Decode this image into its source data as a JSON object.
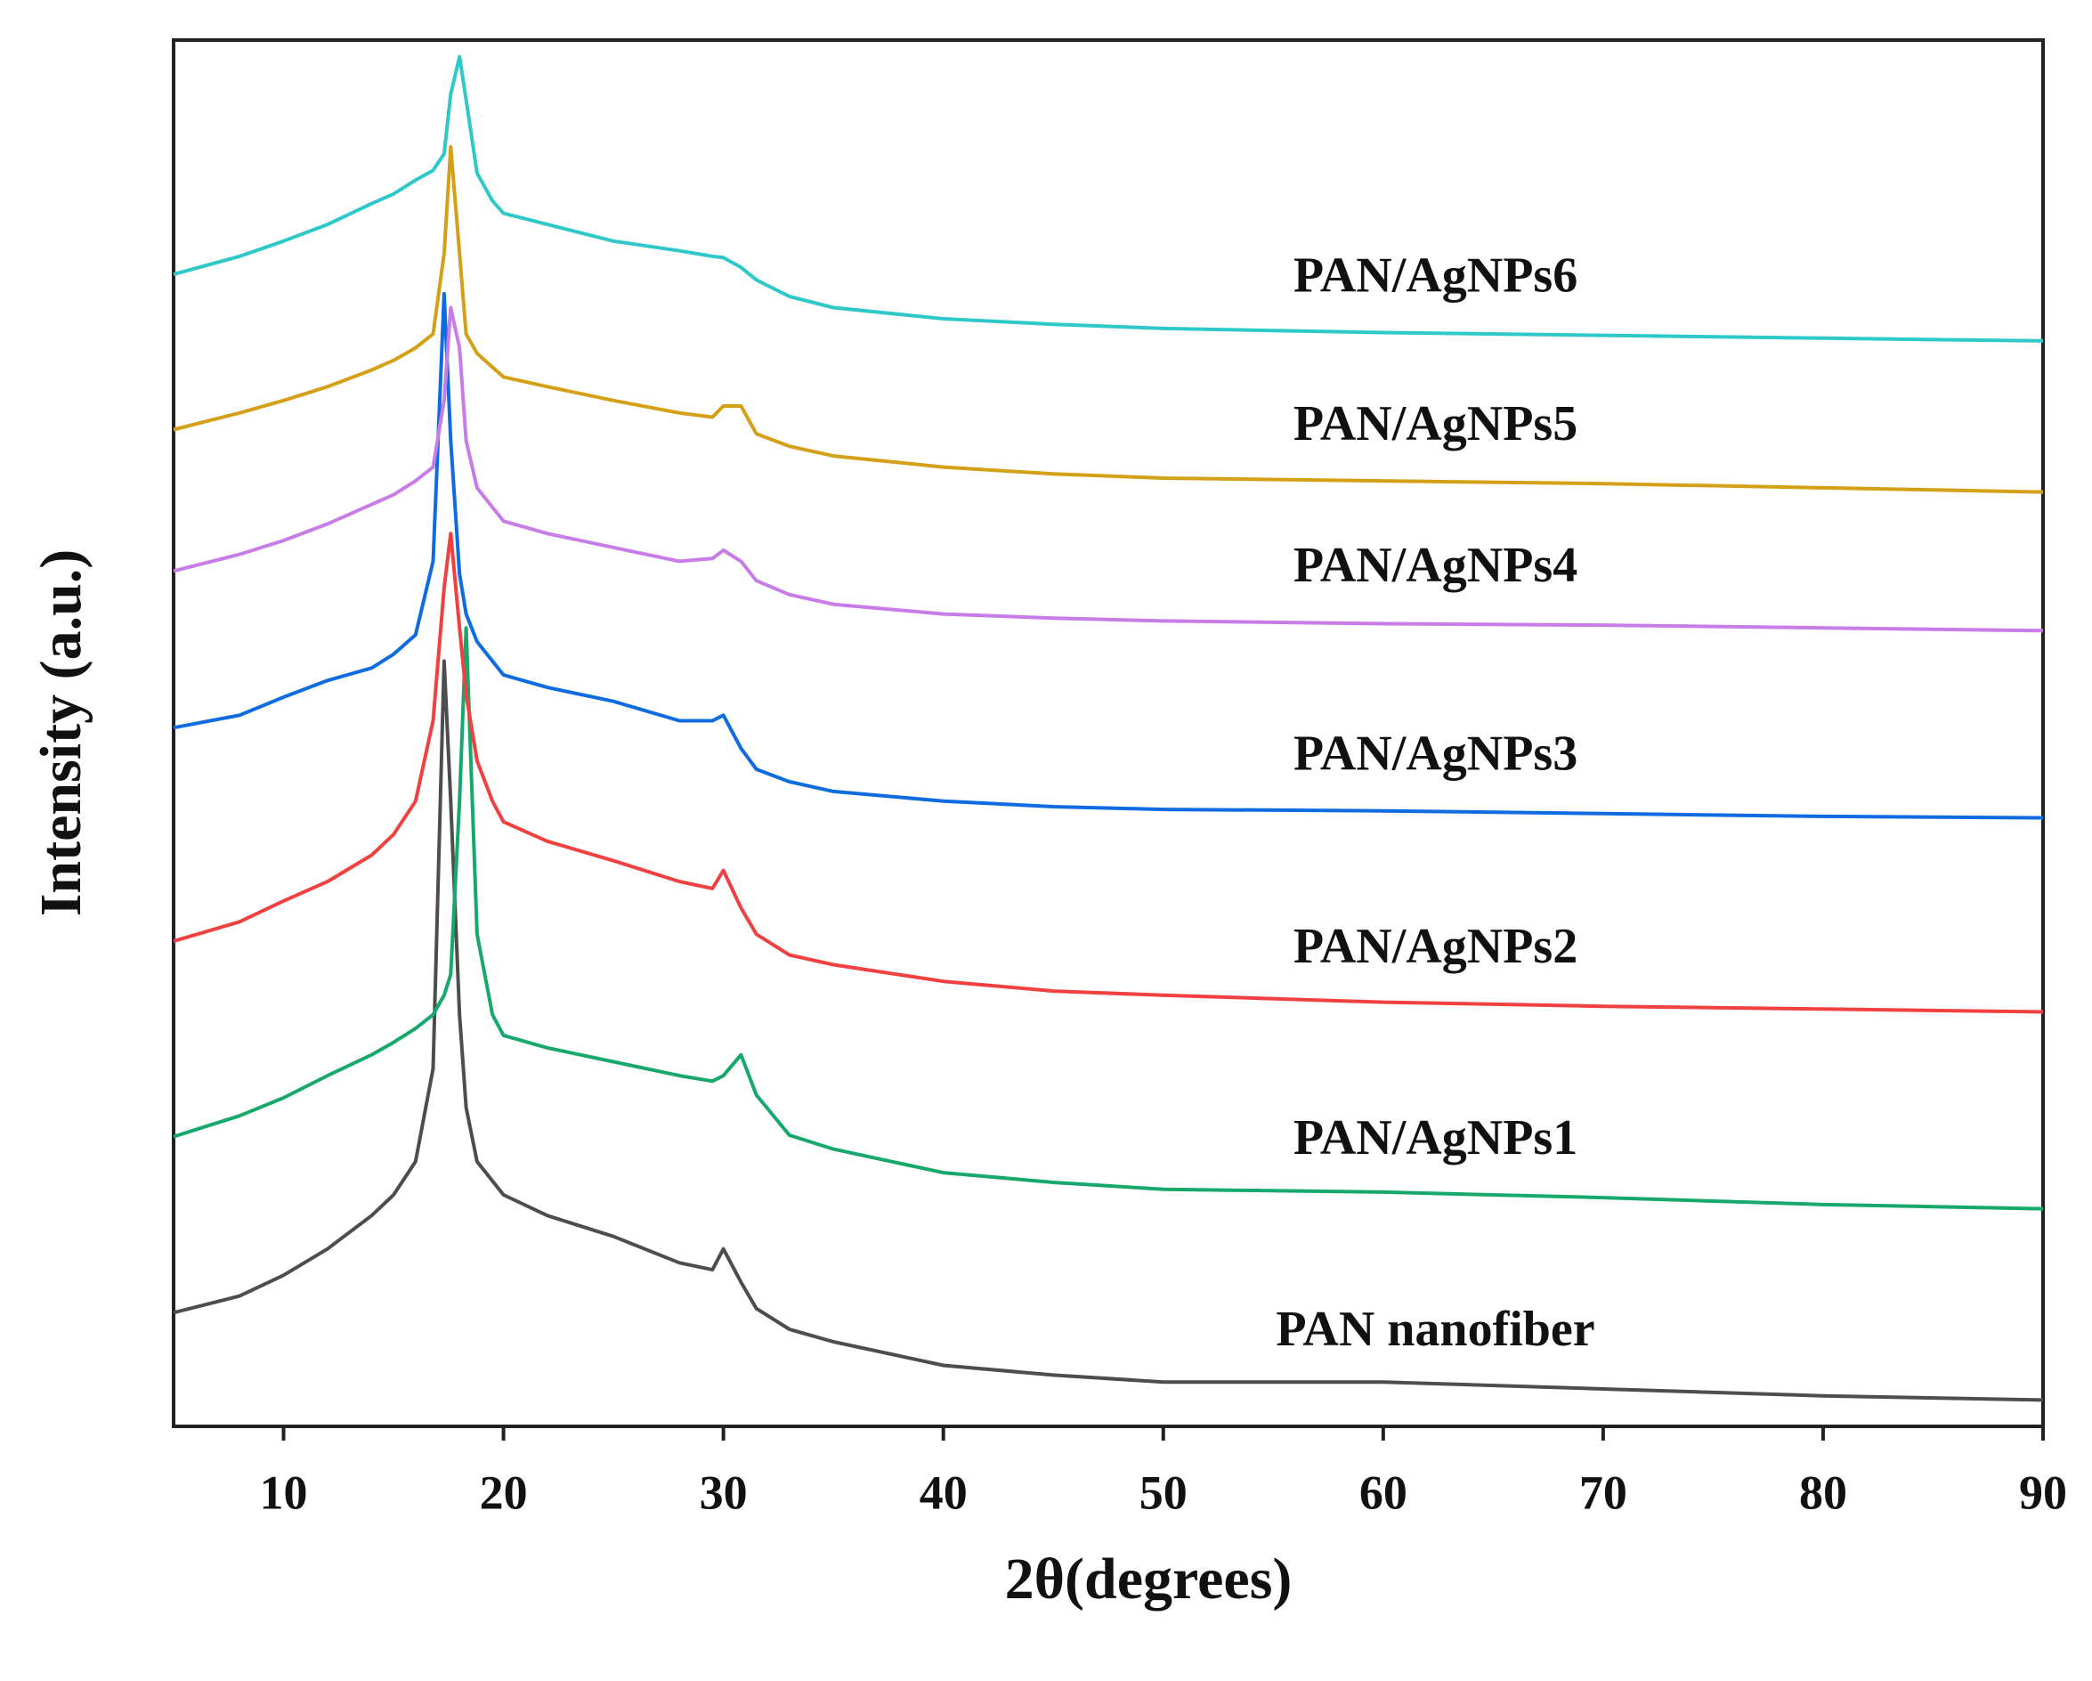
{
  "chart_data": {
    "type": "line",
    "xlabel": "2θ(degrees)",
    "ylabel": "Intensity (a.u.)",
    "xlim": [
      5,
      90
    ],
    "xticks": [
      10,
      20,
      30,
      40,
      50,
      60,
      70,
      80,
      90
    ],
    "ylim": [
      0,
      100
    ],
    "x": [
      5,
      8,
      10,
      12,
      14,
      15,
      16,
      16.8,
      17.3,
      17.6,
      18,
      18.3,
      18.8,
      19.5,
      20,
      22,
      25,
      28,
      29.5,
      30,
      30.8,
      31.5,
      33,
      35,
      40,
      45,
      50,
      60,
      70,
      80,
      90
    ],
    "series": [
      {
        "name": "PAN nanofiber",
        "color": "#4d4d4d",
        "values": [
          8.2,
          9.4,
          10.9,
          12.8,
          15.2,
          16.7,
          19.1,
          25.8,
          55.2,
          45.1,
          29.7,
          23.0,
          19.1,
          17.7,
          16.7,
          15.2,
          13.7,
          11.8,
          11.3,
          12.8,
          10.4,
          8.5,
          7.0,
          6.1,
          4.4,
          3.7,
          3.2,
          3.2,
          2.7,
          2.2,
          1.9
        ]
      },
      {
        "name": "PAN/AgNPs1",
        "color": "#17a86b",
        "values": [
          20.9,
          22.4,
          23.7,
          25.3,
          26.8,
          27.7,
          28.7,
          29.7,
          31.1,
          32.6,
          45.1,
          57.6,
          35.5,
          29.7,
          28.2,
          27.3,
          26.3,
          25.3,
          24.9,
          25.3,
          26.8,
          23.9,
          21.0,
          20.0,
          18.3,
          17.6,
          17.1,
          16.9,
          16.5,
          16.0,
          15.7
        ]
      },
      {
        "name": "PAN/AgNPs2",
        "color": "#f04040",
        "values": [
          35.0,
          36.4,
          37.9,
          39.3,
          41.2,
          42.7,
          45.1,
          50.9,
          60.5,
          64.4,
          57.6,
          52.8,
          48.0,
          45.1,
          43.6,
          42.2,
          40.8,
          39.3,
          38.8,
          40.1,
          37.4,
          35.5,
          34.0,
          33.3,
          32.1,
          31.4,
          31.1,
          30.6,
          30.3,
          30.1,
          29.9
        ]
      },
      {
        "name": "PAN/AgNPs3",
        "color": "#0f6be0",
        "values": [
          50.4,
          51.3,
          52.6,
          53.8,
          54.7,
          55.7,
          57.1,
          62.4,
          81.7,
          71.1,
          61.5,
          58.6,
          56.6,
          55.2,
          54.2,
          53.3,
          52.3,
          50.9,
          50.9,
          51.3,
          48.9,
          47.4,
          46.5,
          45.8,
          45.1,
          44.7,
          44.5,
          44.4,
          44.2,
          44.0,
          43.9
        ]
      },
      {
        "name": "PAN/AgNPs4",
        "color": "#c77ce8",
        "values": [
          61.7,
          62.9,
          63.9,
          65.1,
          66.5,
          67.2,
          68.2,
          69.2,
          74.0,
          80.7,
          77.8,
          71.1,
          67.7,
          66.3,
          65.3,
          64.4,
          63.4,
          62.4,
          62.6,
          63.2,
          62.4,
          61.0,
          60.0,
          59.3,
          58.6,
          58.3,
          58.1,
          57.9,
          57.8,
          57.6,
          57.4
        ]
      },
      {
        "name": "PAN/AgNPs5",
        "color": "#d4a017",
        "values": [
          71.9,
          73.1,
          74.0,
          75.0,
          76.2,
          76.9,
          77.8,
          78.8,
          84.6,
          92.3,
          84.6,
          78.8,
          77.4,
          76.4,
          75.7,
          75.0,
          74.0,
          73.1,
          72.8,
          73.6,
          73.6,
          71.6,
          70.7,
          70.0,
          69.2,
          68.7,
          68.4,
          68.2,
          68.0,
          67.7,
          67.4
        ]
      },
      {
        "name": "PAN/AgNPs6",
        "color": "#2ec8c8",
        "values": [
          83.1,
          84.4,
          85.5,
          86.7,
          88.2,
          88.9,
          89.9,
          90.6,
          91.8,
          96.1,
          98.8,
          95.7,
          90.4,
          88.4,
          87.5,
          86.7,
          85.5,
          84.8,
          84.4,
          84.3,
          83.6,
          82.7,
          81.5,
          80.7,
          79.9,
          79.5,
          79.2,
          78.9,
          78.7,
          78.5,
          78.3
        ]
      }
    ]
  }
}
